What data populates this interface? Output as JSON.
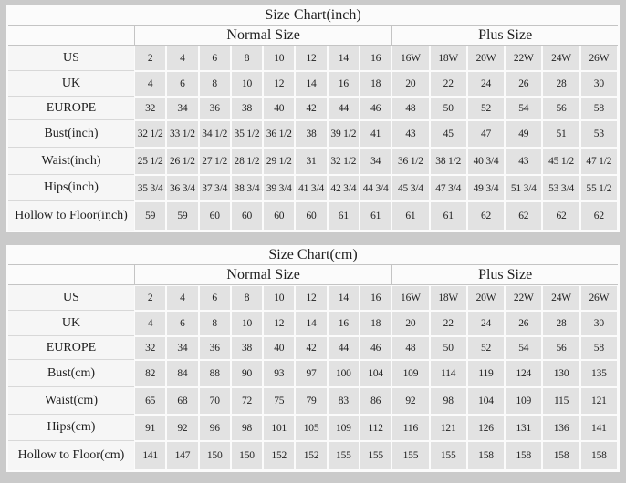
{
  "colors": {
    "page-bg": "#cacaca",
    "table-bg": "#fbfbfb",
    "label-bg": "#f6f6f6",
    "cell-bg": "#e2e2e2",
    "line": "#c4c4c4",
    "label-line": "#d8d8d8",
    "text": "#1f1f1f"
  },
  "chart_data": [
    {
      "type": "table",
      "title": "Size Chart(inch)",
      "group_headers": [
        "Normal Size",
        "Plus Size"
      ],
      "normal_col_count": 8,
      "plus_col_count": 6,
      "rows": [
        {
          "label": "US",
          "values": [
            "2",
            "4",
            "6",
            "8",
            "10",
            "12",
            "14",
            "16",
            "16W",
            "18W",
            "20W",
            "22W",
            "24W",
            "26W"
          ]
        },
        {
          "label": "UK",
          "values": [
            "4",
            "6",
            "8",
            "10",
            "12",
            "14",
            "16",
            "18",
            "20",
            "22",
            "24",
            "26",
            "28",
            "30"
          ]
        },
        {
          "label": "EUROPE",
          "values": [
            "32",
            "34",
            "36",
            "38",
            "40",
            "42",
            "44",
            "46",
            "48",
            "50",
            "52",
            "54",
            "56",
            "58"
          ]
        },
        {
          "label": "Bust(inch)",
          "values": [
            "32 1/2",
            "33 1/2",
            "34 1/2",
            "35 1/2",
            "36 1/2",
            "38",
            "39 1/2",
            "41",
            "43",
            "45",
            "47",
            "49",
            "51",
            "53"
          ]
        },
        {
          "label": "Waist(inch)",
          "values": [
            "25 1/2",
            "26 1/2",
            "27 1/2",
            "28 1/2",
            "29 1/2",
            "31",
            "32 1/2",
            "34",
            "36 1/2",
            "38 1/2",
            "40 3/4",
            "43",
            "45 1/2",
            "47 1/2"
          ]
        },
        {
          "label": "Hips(inch)",
          "values": [
            "35 3/4",
            "36 3/4",
            "37 3/4",
            "38 3/4",
            "39 3/4",
            "41 3/4",
            "42 3/4",
            "44 3/4",
            "45 3/4",
            "47 3/4",
            "49 3/4",
            "51 3/4",
            "53 3/4",
            "55 1/2"
          ]
        },
        {
          "label": "Hollow to Floor(inch)",
          "values": [
            "59",
            "59",
            "60",
            "60",
            "60",
            "60",
            "61",
            "61",
            "61",
            "61",
            "62",
            "62",
            "62",
            "62"
          ]
        }
      ]
    },
    {
      "type": "table",
      "title": "Size Chart(cm)",
      "group_headers": [
        "Normal Size",
        "Plus Size"
      ],
      "normal_col_count": 8,
      "plus_col_count": 6,
      "rows": [
        {
          "label": "US",
          "values": [
            "2",
            "4",
            "6",
            "8",
            "10",
            "12",
            "14",
            "16",
            "16W",
            "18W",
            "20W",
            "22W",
            "24W",
            "26W"
          ]
        },
        {
          "label": "UK",
          "values": [
            "4",
            "6",
            "8",
            "10",
            "12",
            "14",
            "16",
            "18",
            "20",
            "22",
            "24",
            "26",
            "28",
            "30"
          ]
        },
        {
          "label": "EUROPE",
          "values": [
            "32",
            "34",
            "36",
            "38",
            "40",
            "42",
            "44",
            "46",
            "48",
            "50",
            "52",
            "54",
            "56",
            "58"
          ]
        },
        {
          "label": "Bust(cm)",
          "values": [
            "82",
            "84",
            "88",
            "90",
            "93",
            "97",
            "100",
            "104",
            "109",
            "114",
            "119",
            "124",
            "130",
            "135"
          ]
        },
        {
          "label": "Waist(cm)",
          "values": [
            "65",
            "68",
            "70",
            "72",
            "75",
            "79",
            "83",
            "86",
            "92",
            "98",
            "104",
            "109",
            "115",
            "121"
          ]
        },
        {
          "label": "Hips(cm)",
          "values": [
            "91",
            "92",
            "96",
            "98",
            "101",
            "105",
            "109",
            "112",
            "116",
            "121",
            "126",
            "131",
            "136",
            "141"
          ]
        },
        {
          "label": "Hollow to Floor(cm)",
          "values": [
            "141",
            "147",
            "150",
            "150",
            "152",
            "152",
            "155",
            "155",
            "155",
            "155",
            "158",
            "158",
            "158",
            "158"
          ]
        }
      ]
    }
  ]
}
